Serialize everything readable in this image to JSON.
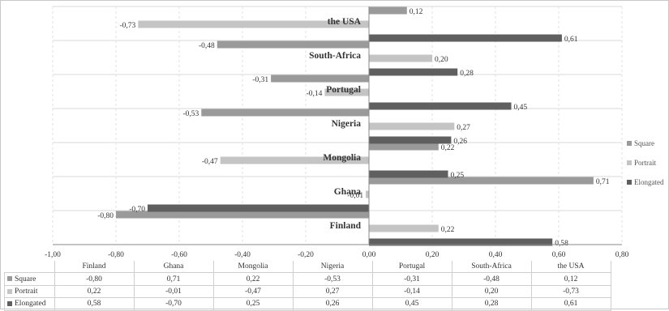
{
  "chart_data": {
    "type": "bar",
    "orientation": "horizontal",
    "categories": [
      "Finland",
      "Ghana",
      "Mongolia",
      "Nigeria",
      "Portugal",
      "South-Africa",
      "the USA"
    ],
    "series": [
      {
        "name": "Square",
        "color": "#9a9a9a",
        "values": [
          -0.8,
          0.71,
          0.22,
          -0.53,
          -0.31,
          -0.48,
          0.12
        ],
        "labels": [
          "-0,80",
          "0,71",
          "0,22",
          "-0,53",
          "-0,31",
          "-0,48",
          "0,12"
        ]
      },
      {
        "name": "Portrait",
        "color": "#c4c4c4",
        "values": [
          0.22,
          -0.01,
          -0.47,
          0.27,
          -0.14,
          0.2,
          -0.73
        ],
        "labels": [
          "0,22",
          "-0,01",
          "-0,47",
          "0,27",
          "-0,14",
          "0,20",
          "-0,73"
        ]
      },
      {
        "name": "Elongated",
        "color": "#5f5f5f",
        "values": [
          0.58,
          -0.7,
          0.25,
          0.26,
          0.45,
          0.28,
          0.61
        ],
        "labels": [
          "0,58",
          "-0,70",
          "0,25",
          "0,26",
          "0,45",
          "0,28",
          "0,61"
        ]
      }
    ],
    "xlim": [
      -1.0,
      0.8
    ],
    "xticks": [
      -1.0,
      -0.8,
      -0.6,
      -0.4,
      -0.2,
      0.0,
      0.2,
      0.4,
      0.6,
      0.8
    ],
    "xtick_labels": [
      "-1,00",
      "-0,80",
      "-0,60",
      "-0,40",
      "-0,20",
      "0,00",
      "0,20",
      "0,40",
      "0,60",
      "0,80"
    ],
    "legend_position": "right",
    "data_table": true,
    "grid": true
  }
}
